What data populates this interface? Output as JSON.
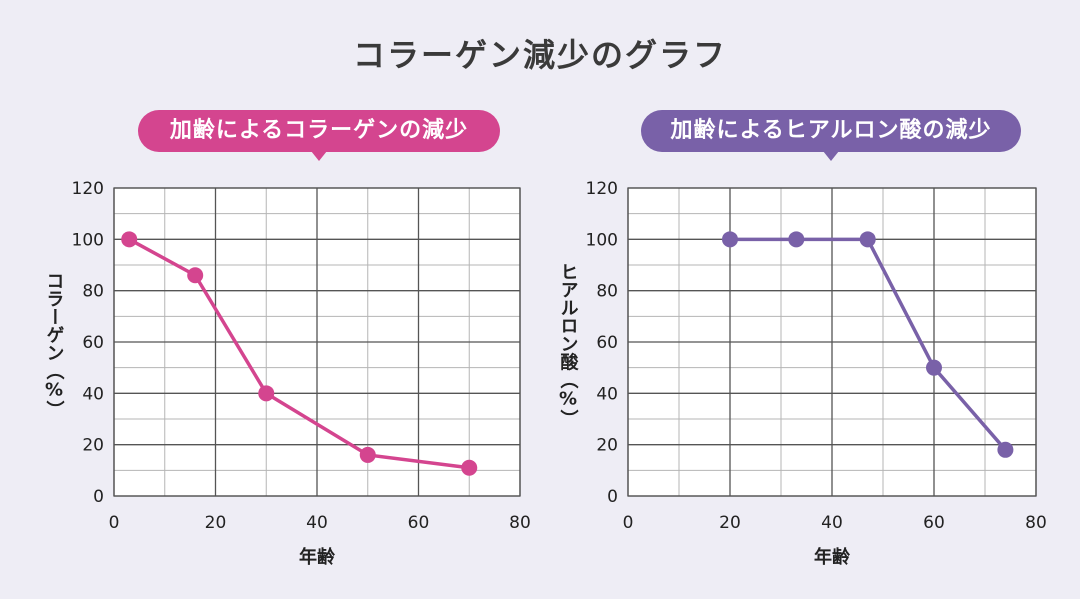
{
  "page": {
    "title": "コラーゲン減少のグラフ"
  },
  "chart_data": [
    {
      "type": "line",
      "title": "加齢によるコラーゲンの減少",
      "xlabel": "年齢",
      "ylabel": "コラーゲン（%）",
      "xlim": [
        0,
        80
      ],
      "ylim": [
        0,
        120
      ],
      "x_ticks": [
        0,
        20,
        40,
        60,
        80
      ],
      "y_ticks": [
        0,
        20,
        40,
        60,
        80,
        100,
        120
      ],
      "grid": true,
      "color": "#d4458f",
      "series": [
        {
          "x": [
            3,
            16,
            30,
            50,
            70
          ],
          "y": [
            100,
            86,
            40,
            16,
            11
          ]
        }
      ]
    },
    {
      "type": "line",
      "title": "加齢によるヒアルロン酸の減少",
      "xlabel": "年齢",
      "ylabel": "ヒアルロン酸（%）",
      "xlim": [
        0,
        80
      ],
      "ylim": [
        0,
        120
      ],
      "x_ticks": [
        0,
        20,
        40,
        60,
        80
      ],
      "y_ticks": [
        0,
        20,
        40,
        60,
        80,
        100,
        120
      ],
      "grid": true,
      "color": "#7961a8",
      "series": [
        {
          "x": [
            20,
            33,
            47,
            60,
            74
          ],
          "y": [
            100,
            100,
            100,
            50,
            18
          ]
        }
      ]
    }
  ]
}
